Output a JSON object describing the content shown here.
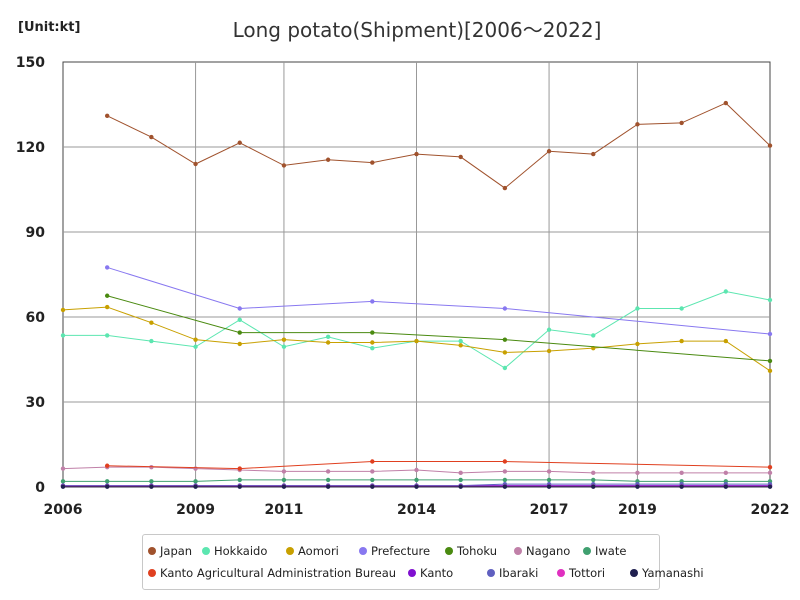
{
  "unit_label": "[Unit:kt]",
  "chart_data": {
    "type": "line",
    "title": "Long potato(Shipment)[2006～2022]",
    "xlabel": "",
    "ylabel": "",
    "xlim": [
      2006,
      2022
    ],
    "ylim": [
      0,
      150
    ],
    "x_ticks": [
      "2006",
      "2009",
      "2011",
      "2014",
      "2017",
      "2019",
      "2022"
    ],
    "y_ticks": [
      "0",
      "30",
      "60",
      "90",
      "120",
      "150"
    ],
    "grid": true,
    "legend_position": "bottom",
    "series": [
      {
        "name": "Japan",
        "color": "#a0522d",
        "points": [
          [
            2007,
            131
          ],
          [
            2008,
            123.5
          ],
          [
            2009,
            114
          ],
          [
            2010,
            121.5
          ],
          [
            2011,
            113.5
          ],
          [
            2012,
            115.5
          ],
          [
            2013,
            114.5
          ],
          [
            2014,
            117.5
          ],
          [
            2015,
            116.5
          ],
          [
            2016,
            105.5
          ],
          [
            2017,
            118.5
          ],
          [
            2018,
            117.5
          ],
          [
            2019,
            128
          ],
          [
            2020,
            128.5
          ],
          [
            2021,
            135.5
          ],
          [
            2022,
            120.5
          ]
        ]
      },
      {
        "name": "Hokkaido",
        "color": "#5ce6b0",
        "points": [
          [
            2006,
            53.5
          ],
          [
            2007,
            53.5
          ],
          [
            2008,
            51.5
          ],
          [
            2009,
            49.5
          ],
          [
            2010,
            59
          ],
          [
            2011,
            49.5
          ],
          [
            2012,
            53
          ],
          [
            2013,
            49
          ],
          [
            2014,
            51.5
          ],
          [
            2015,
            51.5
          ],
          [
            2016,
            42
          ],
          [
            2017,
            55.5
          ],
          [
            2018,
            53.5
          ],
          [
            2019,
            63
          ],
          [
            2020,
            63
          ],
          [
            2021,
            69
          ],
          [
            2022,
            66
          ]
        ]
      },
      {
        "name": "Aomori",
        "color": "#c8a000",
        "points": [
          [
            2006,
            62.5
          ],
          [
            2007,
            63.5
          ],
          [
            2008,
            58
          ],
          [
            2009,
            52
          ],
          [
            2010,
            50.5
          ],
          [
            2011,
            52
          ],
          [
            2012,
            51
          ],
          [
            2013,
            51
          ],
          [
            2014,
            51.5
          ],
          [
            2015,
            50
          ],
          [
            2016,
            47.5
          ],
          [
            2017,
            48
          ],
          [
            2018,
            49
          ],
          [
            2019,
            50.5
          ],
          [
            2020,
            51.5
          ],
          [
            2021,
            51.5
          ],
          [
            2022,
            41
          ]
        ]
      },
      {
        "name": "Prefecture",
        "color": "#8878f0",
        "points": [
          [
            2007,
            77.5
          ],
          [
            2010,
            63
          ],
          [
            2013,
            65.5
          ],
          [
            2016,
            63
          ],
          [
            2022,
            54
          ]
        ]
      },
      {
        "name": "Tohoku",
        "color": "#4a8a10",
        "points": [
          [
            2007,
            67.5
          ],
          [
            2010,
            54.5
          ],
          [
            2013,
            54.5
          ],
          [
            2016,
            52
          ],
          [
            2022,
            44.5
          ]
        ]
      },
      {
        "name": "Nagano",
        "color": "#c080a8",
        "points": [
          [
            2006,
            6.5
          ],
          [
            2007,
            7
          ],
          [
            2008,
            7
          ],
          [
            2009,
            6.5
          ],
          [
            2010,
            6
          ],
          [
            2011,
            5.5
          ],
          [
            2012,
            5.5
          ],
          [
            2013,
            5.5
          ],
          [
            2014,
            6
          ],
          [
            2015,
            5
          ],
          [
            2016,
            5.5
          ],
          [
            2017,
            5.5
          ],
          [
            2018,
            5
          ],
          [
            2019,
            5
          ],
          [
            2020,
            5
          ],
          [
            2021,
            5
          ],
          [
            2022,
            5
          ]
        ]
      },
      {
        "name": "Iwate",
        "color": "#40a070",
        "points": [
          [
            2006,
            2
          ],
          [
            2007,
            2
          ],
          [
            2008,
            2
          ],
          [
            2009,
            2
          ],
          [
            2010,
            2.5
          ],
          [
            2011,
            2.5
          ],
          [
            2012,
            2.5
          ],
          [
            2013,
            2.5
          ],
          [
            2014,
            2.5
          ],
          [
            2015,
            2.5
          ],
          [
            2016,
            2.5
          ],
          [
            2017,
            2.5
          ],
          [
            2018,
            2.5
          ],
          [
            2019,
            2
          ],
          [
            2020,
            2
          ],
          [
            2021,
            2
          ],
          [
            2022,
            2
          ]
        ]
      },
      {
        "name": "Kanto Agricultural Administration Bureau",
        "color": "#e04020",
        "points": [
          [
            2007,
            7.5
          ],
          [
            2010,
            6.5
          ],
          [
            2013,
            9
          ],
          [
            2016,
            9
          ],
          [
            2022,
            7
          ]
        ]
      },
      {
        "name": "Kanto",
        "color": "#8010d0",
        "points": [
          [
            2006,
            0.5
          ],
          [
            2007,
            0.5
          ],
          [
            2008,
            0.5
          ],
          [
            2009,
            0.5
          ],
          [
            2010,
            0.5
          ],
          [
            2011,
            0.5
          ],
          [
            2012,
            0.5
          ],
          [
            2013,
            0.5
          ],
          [
            2014,
            0.5
          ],
          [
            2015,
            0.5
          ],
          [
            2016,
            0.5
          ],
          [
            2017,
            0.5
          ],
          [
            2018,
            0.5
          ],
          [
            2019,
            0.5
          ],
          [
            2020,
            0.5
          ],
          [
            2021,
            0.5
          ],
          [
            2022,
            0.5
          ]
        ]
      },
      {
        "name": "Ibaraki",
        "color": "#6060c0",
        "points": [
          [
            2006,
            0.5
          ],
          [
            2007,
            0.5
          ],
          [
            2008,
            0.5
          ],
          [
            2009,
            0.5
          ],
          [
            2010,
            0.5
          ],
          [
            2011,
            0.5
          ],
          [
            2012,
            0.5
          ],
          [
            2013,
            0.5
          ],
          [
            2014,
            0.5
          ],
          [
            2015,
            0.5
          ],
          [
            2016,
            1
          ],
          [
            2017,
            1
          ],
          [
            2018,
            1
          ],
          [
            2019,
            1
          ],
          [
            2020,
            1
          ],
          [
            2021,
            1
          ],
          [
            2022,
            1
          ]
        ]
      },
      {
        "name": "Tottori",
        "color": "#e030c0",
        "points": [
          [
            2006,
            0.2
          ],
          [
            2007,
            0.2
          ],
          [
            2008,
            0.2
          ],
          [
            2009,
            0.2
          ],
          [
            2010,
            0.2
          ],
          [
            2011,
            0.2
          ],
          [
            2012,
            0.2
          ],
          [
            2013,
            0.2
          ],
          [
            2014,
            0.2
          ],
          [
            2015,
            0.2
          ],
          [
            2016,
            0.2
          ],
          [
            2017,
            0.2
          ],
          [
            2018,
            0.2
          ],
          [
            2019,
            0.2
          ],
          [
            2020,
            0.2
          ],
          [
            2021,
            0.2
          ],
          [
            2022,
            0.2
          ]
        ]
      },
      {
        "name": "Yamanashi",
        "color": "#202050",
        "points": [
          [
            2006,
            0.1
          ],
          [
            2007,
            0.1
          ],
          [
            2008,
            0.1
          ],
          [
            2009,
            0.1
          ],
          [
            2010,
            0.1
          ],
          [
            2011,
            0.1
          ],
          [
            2012,
            0.1
          ],
          [
            2013,
            0.1
          ],
          [
            2014,
            0.1
          ],
          [
            2015,
            0.1
          ],
          [
            2016,
            0.1
          ],
          [
            2017,
            0.1
          ],
          [
            2018,
            0.1
          ],
          [
            2019,
            0.1
          ],
          [
            2020,
            0.1
          ],
          [
            2021,
            0.1
          ],
          [
            2022,
            0.1
          ]
        ]
      }
    ]
  }
}
